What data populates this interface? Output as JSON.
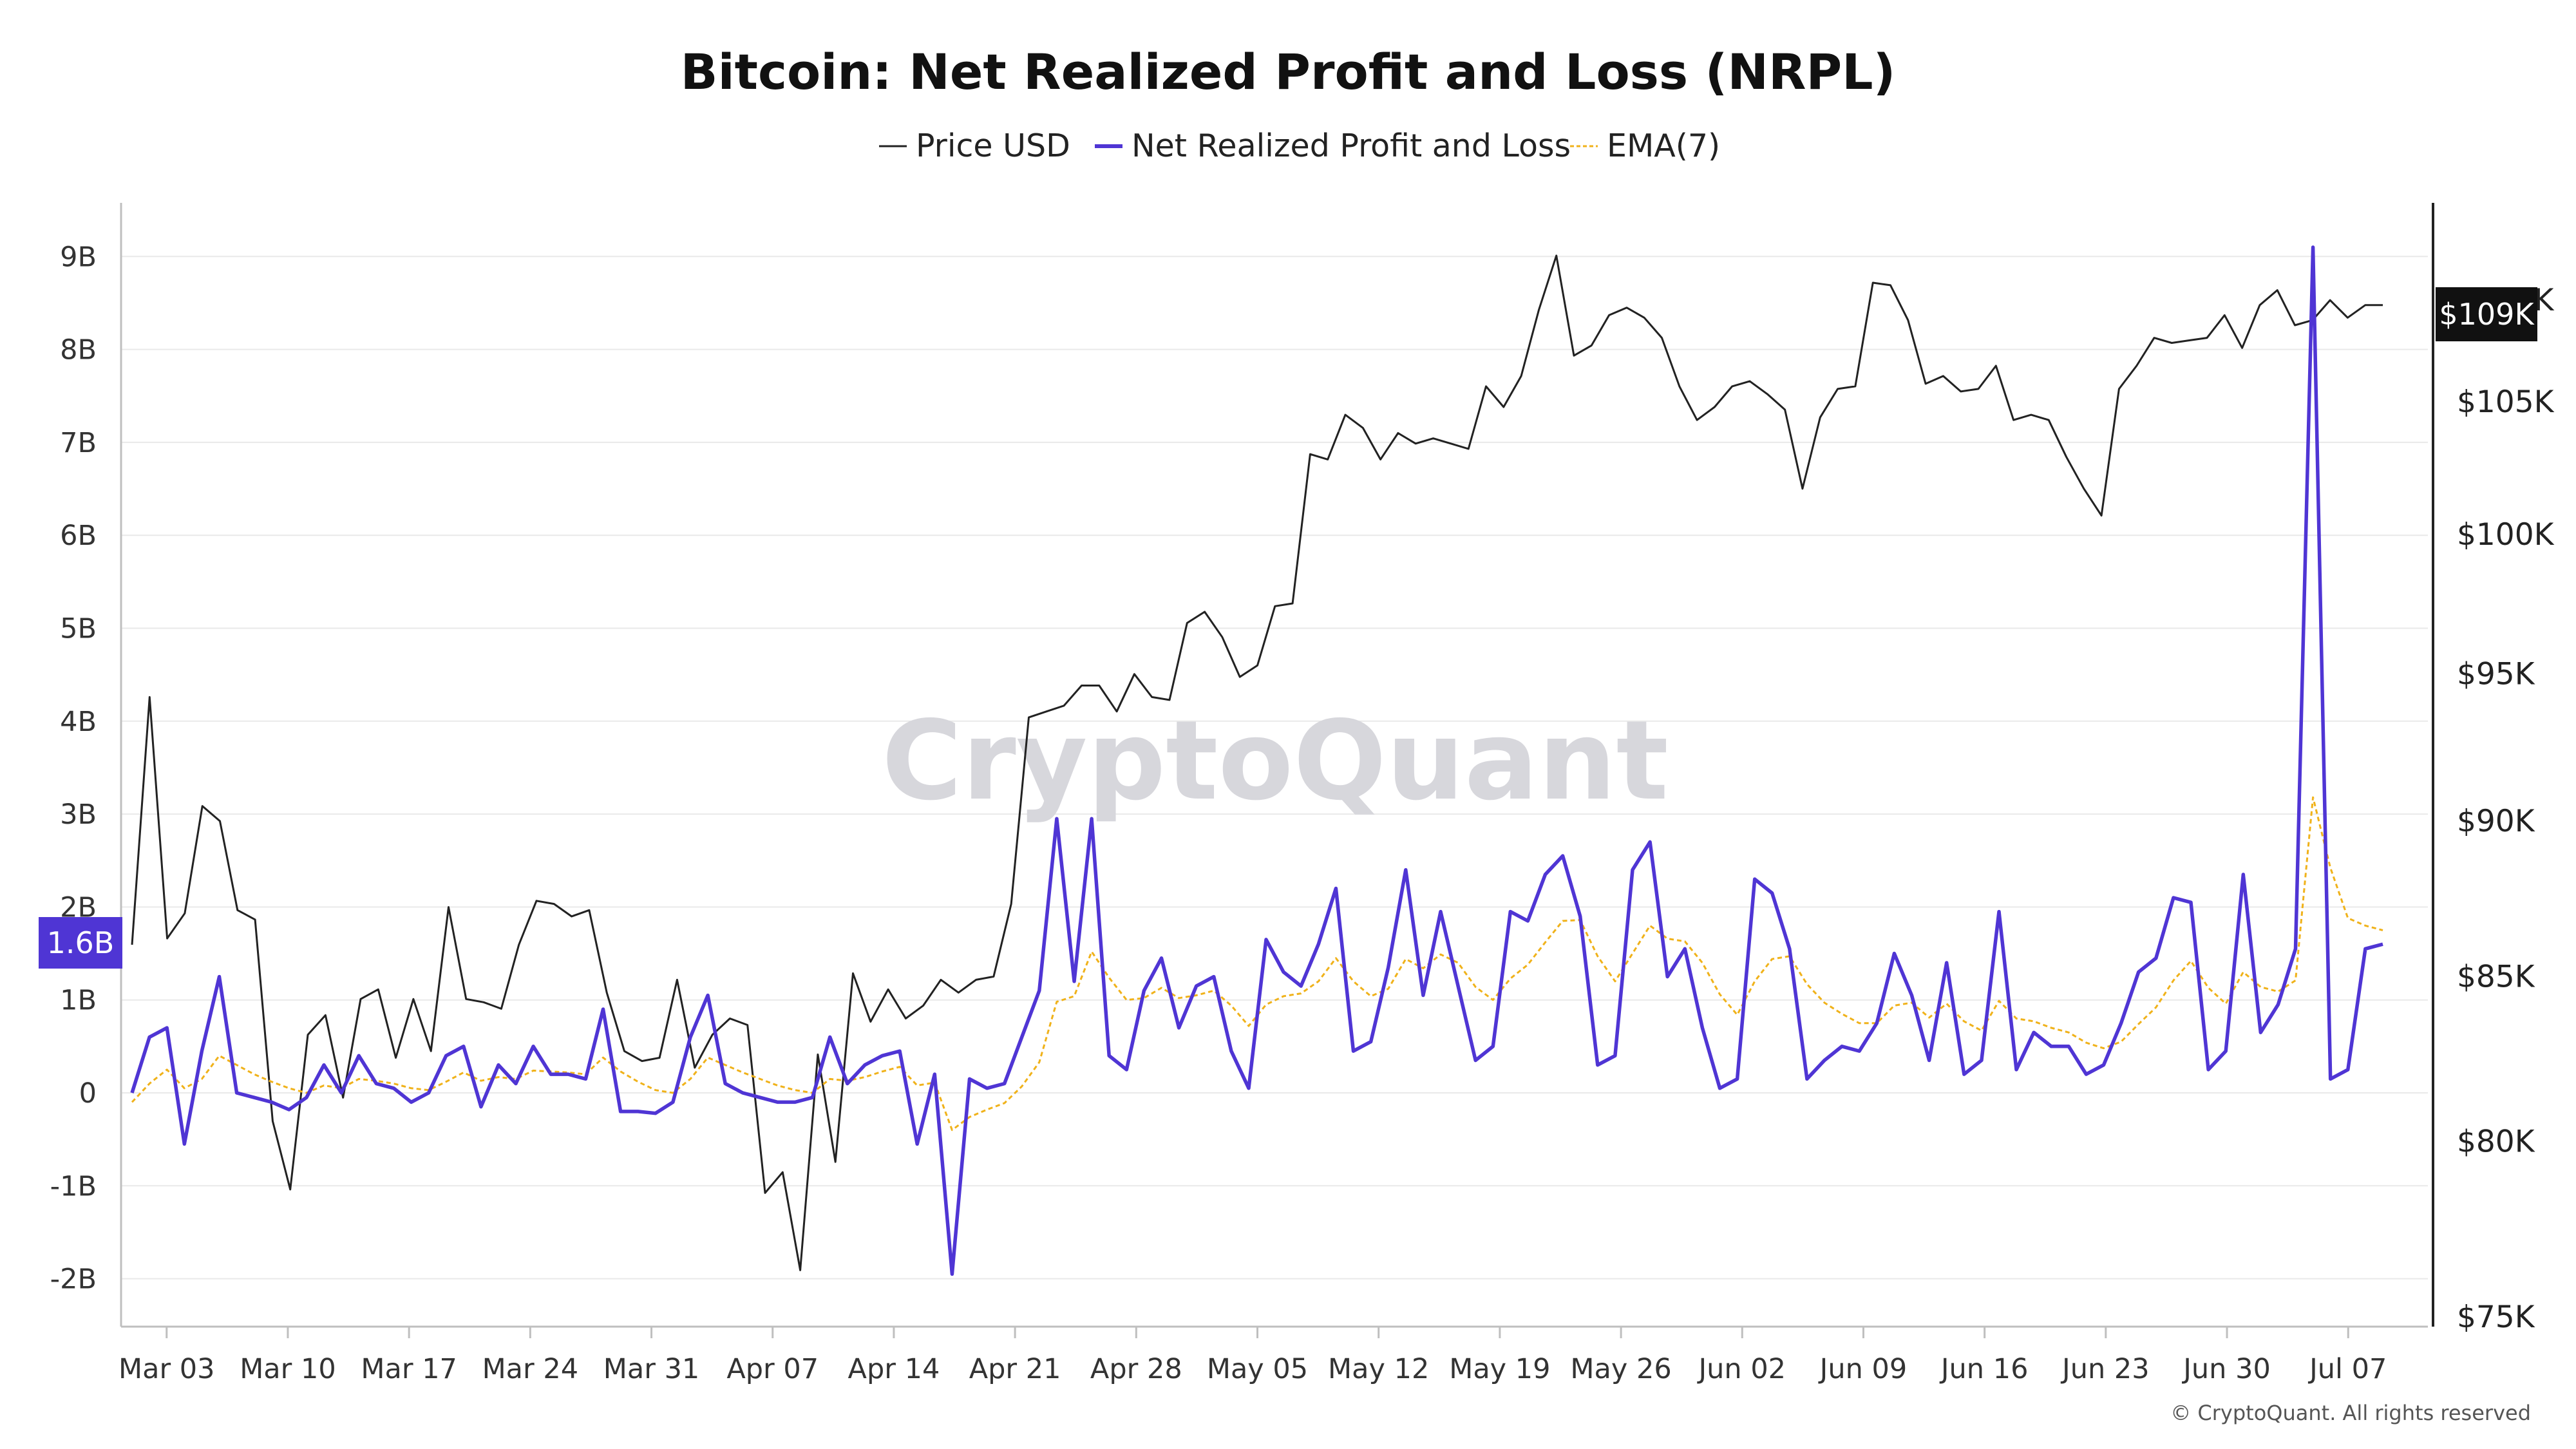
{
  "chart_data": {
    "type": "line",
    "title": "Bitcoin: Net Realized Profit and Loss (NRPL)",
    "watermark": "CryptoQuant",
    "copyright": "© CryptoQuant. All rights reserved",
    "legend": [
      {
        "label": "Price USD",
        "color": "#222222",
        "style": "solid"
      },
      {
        "label": "Net Realized Profit and Loss",
        "color": "#4f35d4",
        "style": "solid"
      },
      {
        "label": "EMA(7)",
        "color": "#f0b21a",
        "style": "dashed"
      }
    ],
    "legend_position": "top-center",
    "grid": true,
    "x_ticks": [
      "Mar 03",
      "Mar 10",
      "Mar 17",
      "Mar 24",
      "Mar 31",
      "Apr 07",
      "Apr 14",
      "Apr 21",
      "Apr 28",
      "May 05",
      "May 12",
      "May 19",
      "May 26",
      "Jun 02",
      "Jun 09",
      "Jun 16",
      "Jun 23",
      "Jun 30",
      "Jul 07"
    ],
    "x_start": "2025-03-01",
    "x_end": "2025-07-09",
    "y_left_ticks": [
      "-2B",
      "-1B",
      "0",
      "1B",
      "2B",
      "3B",
      "4B",
      "5B",
      "6B",
      "7B",
      "8B",
      "9B"
    ],
    "y_left_range": [
      -2.3,
      9.3
    ],
    "y_right_ticks": [
      "$75K",
      "$80K",
      "$85K",
      "$90K",
      "$95K",
      "$100K",
      "$105K",
      "$109K"
    ],
    "y_right_scale": "log",
    "y_right_range": [
      75000,
      112500
    ],
    "nrpl_current_label": "1.6B",
    "price_current_label": "$109K",
    "series": [
      {
        "name": "Net Realized Profit and Loss",
        "unit": "B USD",
        "color": "#4f35d4",
        "values": [
          0.0,
          0.6,
          0.7,
          -0.55,
          0.45,
          1.25,
          0.0,
          -0.05,
          -0.1,
          -0.18,
          -0.05,
          0.3,
          0.0,
          0.4,
          0.1,
          0.05,
          -0.1,
          0.0,
          0.4,
          0.5,
          -0.15,
          0.3,
          0.1,
          0.5,
          0.2,
          0.2,
          0.15,
          0.9,
          -0.2,
          -0.2,
          -0.22,
          -0.1,
          0.6,
          1.05,
          0.1,
          0.0,
          -0.05,
          -0.1,
          -0.1,
          -0.05,
          0.6,
          0.1,
          0.3,
          0.4,
          0.45,
          -0.55,
          0.2,
          -1.95,
          0.15,
          0.05,
          0.1,
          0.6,
          1.1,
          2.95,
          1.2,
          2.95,
          0.4,
          0.25,
          1.1,
          1.45,
          0.7,
          1.15,
          1.25,
          0.45,
          0.05,
          1.65,
          1.3,
          1.15,
          1.6,
          2.2,
          0.45,
          0.55,
          1.35,
          2.4,
          1.05,
          1.95,
          1.15,
          0.35,
          0.5,
          1.95,
          1.85,
          2.35,
          2.55,
          1.9,
          0.3,
          0.4,
          2.4,
          2.7,
          1.25,
          1.55,
          0.7,
          0.05,
          0.15,
          2.3,
          2.15,
          1.55,
          0.15,
          0.35,
          0.5,
          0.45,
          0.75,
          1.5,
          1.05,
          0.35,
          1.4,
          0.2,
          0.35,
          1.95,
          0.25,
          0.65,
          0.5,
          0.5,
          0.2,
          0.3,
          0.75,
          1.3,
          1.45,
          2.1,
          2.05,
          0.25,
          0.45,
          2.35,
          0.65,
          0.95,
          1.55,
          9.1,
          0.15,
          0.25,
          1.55,
          1.6
        ]
      },
      {
        "name": "EMA(7)",
        "unit": "B USD",
        "color": "#f0b21a",
        "values": [
          -0.1,
          0.1,
          0.25,
          0.05,
          0.15,
          0.4,
          0.3,
          0.2,
          0.12,
          0.05,
          0.0,
          0.08,
          0.05,
          0.15,
          0.13,
          0.1,
          0.05,
          0.03,
          0.12,
          0.22,
          0.13,
          0.17,
          0.15,
          0.24,
          0.23,
          0.22,
          0.2,
          0.38,
          0.23,
          0.12,
          0.03,
          0.0,
          0.15,
          0.38,
          0.3,
          0.22,
          0.15,
          0.08,
          0.03,
          0.0,
          0.15,
          0.13,
          0.17,
          0.23,
          0.28,
          0.08,
          0.11,
          -0.4,
          -0.26,
          -0.18,
          -0.11,
          0.07,
          0.33,
          0.98,
          1.04,
          1.52,
          1.24,
          1.0,
          1.02,
          1.13,
          1.02,
          1.05,
          1.1,
          0.94,
          0.72,
          0.95,
          1.04,
          1.07,
          1.2,
          1.45,
          1.2,
          1.04,
          1.12,
          1.44,
          1.34,
          1.49,
          1.4,
          1.14,
          1.0,
          1.23,
          1.38,
          1.62,
          1.85,
          1.86,
          1.47,
          1.2,
          1.5,
          1.8,
          1.66,
          1.63,
          1.4,
          1.06,
          0.84,
          1.2,
          1.44,
          1.47,
          1.17,
          0.97,
          0.85,
          0.75,
          0.75,
          0.94,
          0.97,
          0.81,
          0.96,
          0.77,
          0.67,
          0.99,
          0.8,
          0.77,
          0.7,
          0.65,
          0.54,
          0.48,
          0.55,
          0.74,
          0.92,
          1.21,
          1.42,
          1.13,
          0.96,
          1.3,
          1.14,
          1.09,
          1.21,
          3.18,
          2.42,
          1.88,
          1.8,
          1.75
        ]
      },
      {
        "name": "Price USD",
        "unit": "USD",
        "color": "#222222",
        "axis": "right",
        "values": [
          86000,
          94200,
          86200,
          87000,
          90500,
          90000,
          87100,
          86800,
          80600,
          78600,
          83200,
          83800,
          81300,
          84300,
          84600,
          82500,
          84300,
          82700,
          87200,
          84300,
          84200,
          84000,
          86000,
          87400,
          87300,
          86900,
          87100,
          84500,
          82700,
          82400,
          82500,
          84900,
          82200,
          83200,
          83700,
          83500,
          78500,
          79100,
          76300,
          82600,
          79400,
          85100,
          83600,
          84600,
          83700,
          84100,
          84900,
          84500,
          84900,
          85000,
          87300,
          93500,
          93700,
          93900,
          94600,
          94600,
          93700,
          95000,
          94200,
          94100,
          96800,
          97200,
          96300,
          94900,
          95300,
          97400,
          97500,
          103000,
          102800,
          104500,
          104000,
          102800,
          103800,
          103400,
          103600,
          103400,
          103200,
          105600,
          104800,
          106000,
          108600,
          110800,
          106800,
          107200,
          108400,
          108700,
          108300,
          107500,
          105600,
          104300,
          104800,
          105600,
          105800,
          105300,
          104700,
          101700,
          104400,
          105500,
          105600,
          109700,
          109600,
          108200,
          105700,
          106000,
          105400,
          105500,
          106400,
          104300,
          104500,
          104300,
          102900,
          101700,
          100700,
          105500,
          106400,
          107500,
          107300,
          107400,
          107500,
          108400,
          107100,
          108800,
          109400,
          108000,
          108200,
          109000,
          108300,
          108800,
          108800
        ]
      }
    ]
  }
}
